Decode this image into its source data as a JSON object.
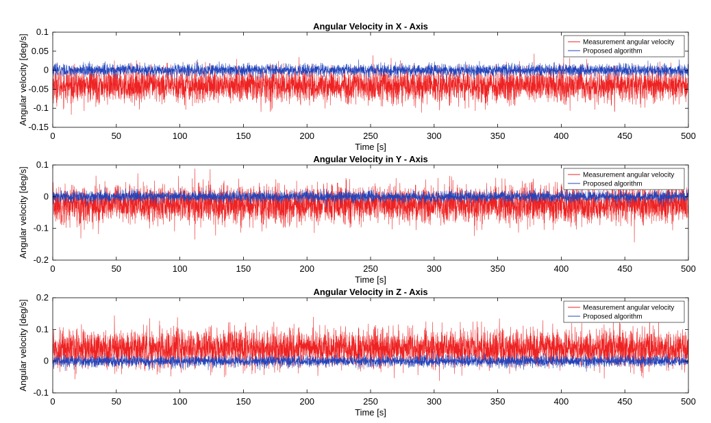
{
  "chart_data": [
    {
      "type": "line",
      "title": "Angular Velocity in X - Axis",
      "xlabel": "Time [s]",
      "ylabel": "Angular velocity [deg/s]",
      "xlim": [
        0,
        500
      ],
      "ylim": [
        -0.15,
        0.1
      ],
      "xticks": [
        "0",
        "50",
        "100",
        "150",
        "200",
        "250",
        "300",
        "350",
        "400",
        "450",
        "500"
      ],
      "xtick_values": [
        0,
        50,
        100,
        150,
        200,
        250,
        300,
        350,
        400,
        450,
        500
      ],
      "yticks": [
        "0.1",
        "0.05",
        "0",
        "-0.05",
        "-0.1",
        "-0.15"
      ],
      "ytick_values": [
        0.1,
        0.05,
        0,
        -0.05,
        -0.1,
        -0.15
      ],
      "grid": false,
      "legend_position": "top-right",
      "series": [
        {
          "name": "Measurement angular velocity",
          "color": "#ee2222",
          "mean": -0.04,
          "std": 0.022,
          "min": -0.14,
          "max": 0.07,
          "n": 5000
        },
        {
          "name": "Proposed algorithm",
          "color": "#2244bb",
          "mean": 0.0,
          "std": 0.008,
          "min": -0.03,
          "max": 0.035,
          "n": 5000
        }
      ]
    },
    {
      "type": "line",
      "title": "Angular Velocity in Y - Axis",
      "xlabel": "Time [s]",
      "ylabel": "Angular velocity [deg/s]",
      "xlim": [
        0,
        500
      ],
      "ylim": [
        -0.2,
        0.1
      ],
      "xticks": [
        "0",
        "50",
        "100",
        "150",
        "200",
        "250",
        "300",
        "350",
        "400",
        "450",
        "500"
      ],
      "xtick_values": [
        0,
        50,
        100,
        150,
        200,
        250,
        300,
        350,
        400,
        450,
        500
      ],
      "yticks": [
        "0.1",
        "0",
        "-0.1",
        "-0.2"
      ],
      "ytick_values": [
        0.1,
        0,
        -0.1,
        -0.2
      ],
      "grid": false,
      "legend_position": "top-right",
      "series": [
        {
          "name": "Measurement angular velocity",
          "color": "#ee2222",
          "mean": -0.025,
          "std": 0.03,
          "min": -0.17,
          "max": 0.1,
          "n": 5000
        },
        {
          "name": "Proposed algorithm",
          "color": "#2244bb",
          "mean": 0.0,
          "std": 0.009,
          "min": -0.035,
          "max": 0.035,
          "n": 5000
        }
      ]
    },
    {
      "type": "line",
      "title": "Angular Velocity in Z - Axis",
      "xlabel": "Time [s]",
      "ylabel": "Angular velocity [deg/s]",
      "xlim": [
        0,
        500
      ],
      "ylim": [
        -0.1,
        0.2
      ],
      "xticks": [
        "0",
        "50",
        "100",
        "150",
        "200",
        "250",
        "300",
        "350",
        "400",
        "450",
        "500"
      ],
      "xtick_values": [
        0,
        50,
        100,
        150,
        200,
        250,
        300,
        350,
        400,
        450,
        500
      ],
      "yticks": [
        "0.2",
        "0.1",
        "0",
        "-0.1"
      ],
      "ytick_values": [
        0.2,
        0.1,
        0,
        -0.1
      ],
      "grid": false,
      "legend_position": "top-right",
      "series": [
        {
          "name": "Measurement angular velocity",
          "color": "#ee2222",
          "mean": 0.04,
          "std": 0.03,
          "min": -0.09,
          "max": 0.15,
          "n": 5000
        },
        {
          "name": "Proposed algorithm",
          "color": "#2244bb",
          "mean": 0.0,
          "std": 0.009,
          "min": -0.035,
          "max": 0.035,
          "n": 5000
        }
      ]
    }
  ]
}
